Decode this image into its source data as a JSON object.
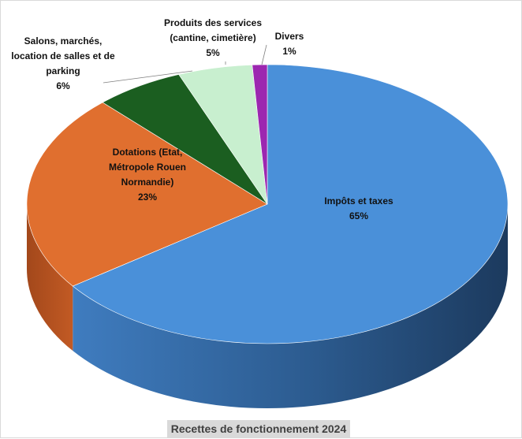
{
  "chart_data": {
    "type": "pie",
    "title": "Recettes de fonctionnement 2024",
    "slices": [
      {
        "label_lines": [
          "Impôts et taxes"
        ],
        "percent_label": "65%",
        "value": 65,
        "color": "#4a90d9"
      },
      {
        "label_lines": [
          "Dotations (Etat,",
          "Métropole Rouen",
          "Normandie)"
        ],
        "percent_label": "23%",
        "value": 23,
        "color": "#e06f2f"
      },
      {
        "label_lines": [
          "Salons, marchés,",
          "location de salles et de",
          "parking"
        ],
        "percent_label": "6%",
        "value": 6,
        "color": "#1b5e20"
      },
      {
        "label_lines": [
          "Produits des services",
          "(cantine, cimetière)"
        ],
        "percent_label": "5%",
        "value": 5,
        "color": "#c8efcf"
      },
      {
        "label_lines": [
          "Divers"
        ],
        "percent_label": "1%",
        "value": 1,
        "color": "#9c27b0"
      }
    ]
  }
}
